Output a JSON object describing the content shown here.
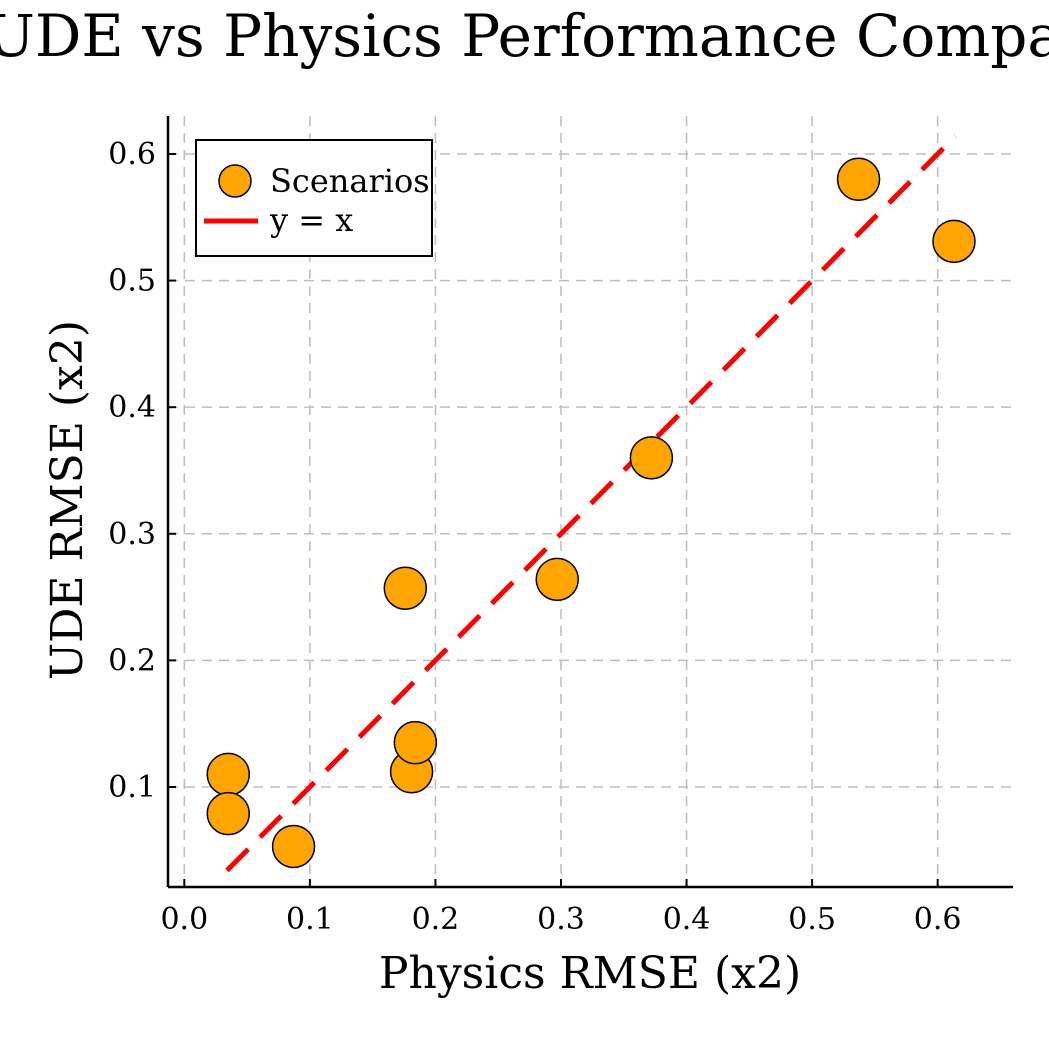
{
  "chart_data": {
    "type": "scatter",
    "title": "UDE vs Physics Performance Compa",
    "xlabel": "Physics RMSE (x2)",
    "ylabel": "UDE RMSE (x2)",
    "xlim": [
      -0.013,
      0.66
    ],
    "ylim": [
      0.021,
      0.63
    ],
    "xticks": [
      0.0,
      0.1,
      0.2,
      0.3,
      0.4,
      0.5,
      0.6
    ],
    "xtick_labels": [
      "0.0",
      "0.1",
      "0.2",
      "0.3",
      "0.4",
      "0.5",
      "0.6"
    ],
    "yticks": [
      0.1,
      0.2,
      0.3,
      0.4,
      0.5,
      0.6
    ],
    "ytick_labels": [
      "0.1",
      "0.2",
      "0.3",
      "0.4",
      "0.5",
      "0.6"
    ],
    "grid": true,
    "legend_position": "top-left",
    "series": [
      {
        "name": "Scenarios",
        "kind": "scatter",
        "color": "#FFA500",
        "edge_color": "#000000",
        "x": [
          0.035,
          0.035,
          0.087,
          0.176,
          0.181,
          0.184,
          0.297,
          0.372,
          0.537,
          0.613
        ],
        "y": [
          0.11,
          0.079,
          0.053,
          0.257,
          0.112,
          0.135,
          0.264,
          0.36,
          0.58,
          0.531
        ]
      },
      {
        "name": "y = x",
        "kind": "line",
        "style": "dashed",
        "color": "#FF0000",
        "x": [
          0.034,
          0.614
        ],
        "y": [
          0.034,
          0.614
        ]
      }
    ]
  }
}
